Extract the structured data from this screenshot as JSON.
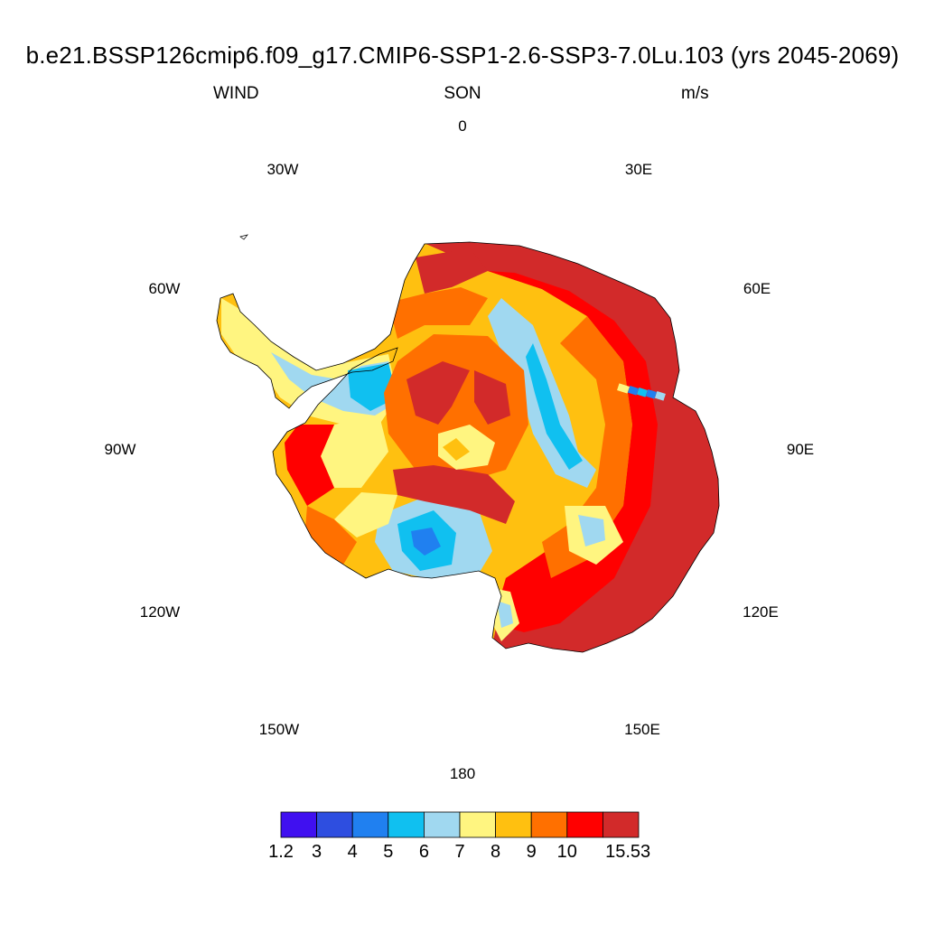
{
  "header": {
    "title": "b.e21.BSSP126cmip6.f09_g17.CMIP6-SSP1-2.6-SSP3-7.0Lu.103 (yrs 2045-2069)",
    "variable": "WIND",
    "season": "SON",
    "units": "m/s"
  },
  "longitude_labels": [
    "0",
    "30E",
    "60E",
    "90E",
    "120E",
    "150E",
    "180",
    "150W",
    "120W",
    "90W",
    "60W",
    "30W"
  ],
  "colorbar": {
    "colors": [
      "#4010F0",
      "#2E4EE0",
      "#2080F0",
      "#10C0F0",
      "#A0D8F0",
      "#FFF580",
      "#FFC010",
      "#FF7000",
      "#FF0000",
      "#D22A2A"
    ],
    "labels": [
      "1.2",
      "3",
      "4",
      "5",
      "6",
      "7",
      "8",
      "9",
      "10",
      "15.53"
    ]
  },
  "map_data": {
    "projection": "south-polar-stereographic",
    "field": "seasonal mean wind speed over Antarctica",
    "pattern": "strongest (>10 m/s) along East Antarctic coastal slopes and the Indian Ocean sector; weakest (5-7 m/s) over the Ross and Ronne ice shelves and the interior plateau ridges"
  }
}
